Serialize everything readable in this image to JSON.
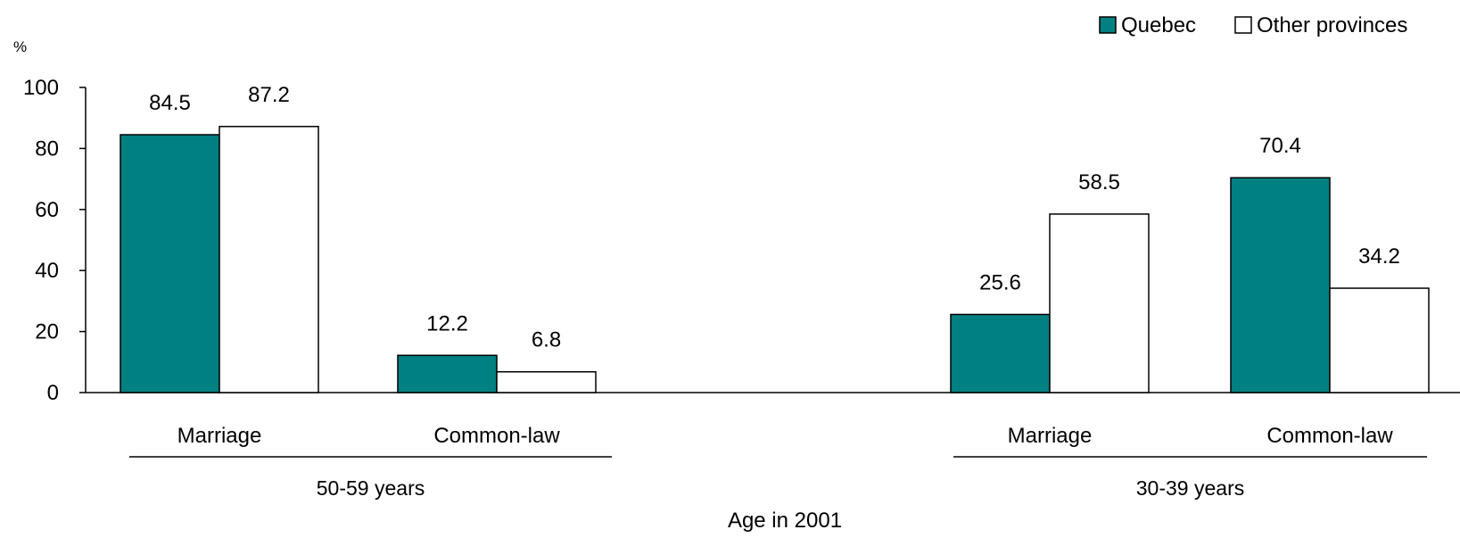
{
  "chart_data": {
    "type": "bar",
    "y_unit_label": "%",
    "xlabel": "Age in 2001",
    "ylim": [
      0,
      100
    ],
    "yticks": [
      0,
      20,
      40,
      60,
      80,
      100
    ],
    "legend_position": "top-right",
    "groups": [
      {
        "label": "50-59 years",
        "categories": [
          "Marriage",
          "Common-law"
        ]
      },
      {
        "label": "30-39 years",
        "categories": [
          "Marriage",
          "Common-law"
        ]
      }
    ],
    "categories": [
      "Marriage",
      "Common-law",
      "Marriage",
      "Common-law"
    ],
    "series": [
      {
        "name": "Quebec",
        "color": "#008080",
        "values": [
          84.5,
          12.2,
          25.6,
          70.4
        ]
      },
      {
        "name": "Other provinces",
        "color": "#ffffff",
        "values": [
          87.2,
          6.8,
          58.5,
          34.2
        ]
      }
    ],
    "value_labels": {
      "Quebec": [
        "84.5",
        "12.2",
        "25.6",
        "70.4"
      ],
      "Other provinces": [
        "87.2",
        "6.8",
        "58.5",
        "34.2"
      ]
    }
  }
}
